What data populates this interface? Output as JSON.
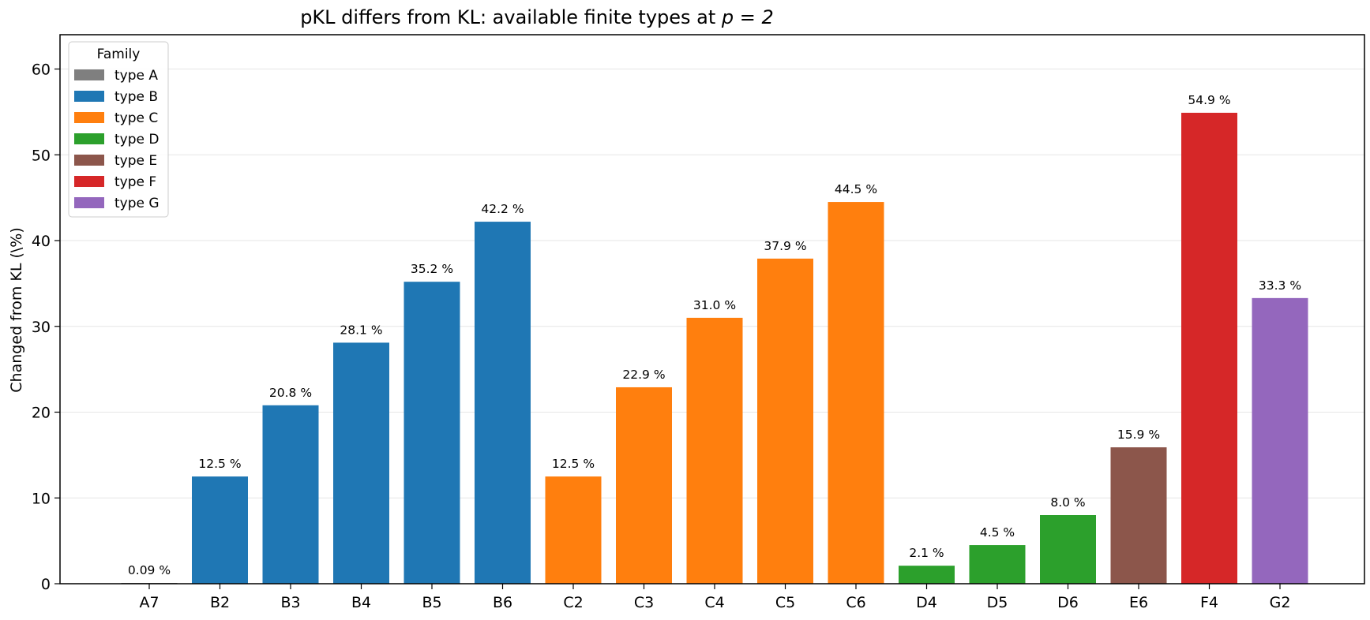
{
  "chart_data": {
    "type": "bar",
    "title": "pKL differs from KL: available finite types at ",
    "title_math": "p = 2",
    "xlabel": "",
    "ylabel": "Changed from KL (\\%)",
    "ylim": [
      0,
      64
    ],
    "yticks": [
      "0",
      "10",
      "20",
      "30",
      "40",
      "50",
      "60"
    ],
    "grid": "horizontal",
    "legend_position": "top-left",
    "legend_title": "Family",
    "families": [
      {
        "name": "type A",
        "color": "#7f7f7f"
      },
      {
        "name": "type B",
        "color": "#1f77b4"
      },
      {
        "name": "type C",
        "color": "#ff7f0e"
      },
      {
        "name": "type D",
        "color": "#2ca02c"
      },
      {
        "name": "type E",
        "color": "#8c564b"
      },
      {
        "name": "type F",
        "color": "#d62728"
      },
      {
        "name": "type G",
        "color": "#9467bd"
      }
    ],
    "categories": [
      "A7",
      "B2",
      "B3",
      "B4",
      "B5",
      "B6",
      "C2",
      "C3",
      "C4",
      "C5",
      "C6",
      "D4",
      "D5",
      "D6",
      "E6",
      "F4",
      "G2"
    ],
    "values": [
      0.09,
      12.5,
      20.8,
      28.1,
      35.2,
      42.2,
      12.5,
      22.9,
      31.0,
      37.9,
      44.5,
      2.1,
      4.5,
      8.0,
      15.9,
      54.9,
      33.3
    ],
    "value_labels": [
      "0.09 %",
      "12.5 %",
      "20.8 %",
      "28.1 %",
      "35.2 %",
      "42.2 %",
      "12.5 %",
      "22.9 %",
      "31.0 %",
      "37.9 %",
      "44.5 %",
      "2.1 %",
      "4.5 %",
      "8.0 %",
      "15.9 %",
      "54.9 %",
      "33.3 %"
    ],
    "bar_family": [
      "type A",
      "type B",
      "type B",
      "type B",
      "type B",
      "type B",
      "type C",
      "type C",
      "type C",
      "type C",
      "type C",
      "type D",
      "type D",
      "type D",
      "type E",
      "type F",
      "type G"
    ]
  }
}
